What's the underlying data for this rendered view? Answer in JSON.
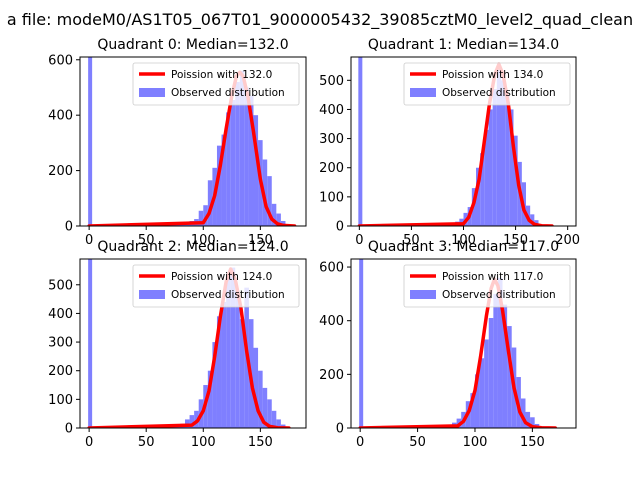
{
  "figure": {
    "suptitle": "a file: modeM0/AS1T05_067T01_9000005432_39085cztM0_level2_quad_clean",
    "colors": {
      "observed": "#7f7fff",
      "poisson": "#ff0000",
      "axes": "#000000",
      "background": "#ffffff"
    }
  },
  "chart_data": [
    {
      "type": "bar",
      "title": "Quadrant 0: Median=132.0",
      "median": 132.0,
      "xlim": [
        -8,
        190
      ],
      "ylim": [
        0,
        610
      ],
      "xticks": [
        0,
        50,
        100,
        150
      ],
      "yticks": [
        0,
        200,
        400,
        600
      ],
      "legend_position": "top-right",
      "series": [
        {
          "name": "Poission with 132.0",
          "type": "line",
          "x": [
            0,
            100,
            105,
            110,
            115,
            120,
            125,
            129,
            132,
            135,
            139,
            144,
            150,
            155,
            160,
            165,
            170,
            180
          ],
          "values": [
            0,
            12,
            45,
            110,
            220,
            350,
            470,
            540,
            555,
            540,
            470,
            340,
            170,
            70,
            25,
            8,
            2,
            0
          ]
        },
        {
          "name": "Observed distribution",
          "type": "hist",
          "bin_width": 4,
          "spike": {
            "x": 0,
            "value": 610
          },
          "bins": [
            [
              76,
              5
            ],
            [
              80,
              8
            ],
            [
              84,
              12
            ],
            [
              88,
              18
            ],
            [
              92,
              25
            ],
            [
              96,
              55
            ],
            [
              100,
              75
            ],
            [
              104,
              165
            ],
            [
              108,
              210
            ],
            [
              112,
              290
            ],
            [
              116,
              330
            ],
            [
              120,
              410
            ],
            [
              124,
              455
            ],
            [
              128,
              520
            ],
            [
              132,
              560
            ],
            [
              136,
              500
            ],
            [
              140,
              470
            ],
            [
              144,
              400
            ],
            [
              148,
              310
            ],
            [
              152,
              240
            ],
            [
              156,
              180
            ],
            [
              160,
              80
            ],
            [
              164,
              45
            ],
            [
              168,
              18
            ],
            [
              172,
              6
            ]
          ]
        }
      ]
    },
    {
      "type": "bar",
      "title": "Quadrant 1: Median=134.0",
      "median": 134.0,
      "xlim": [
        -8,
        208
      ],
      "ylim": [
        0,
        580
      ],
      "xticks": [
        0,
        50,
        100,
        150,
        200
      ],
      "yticks": [
        0,
        100,
        200,
        300,
        400,
        500
      ],
      "legend_position": "top-right",
      "series": [
        {
          "name": "Poission with 134.0",
          "type": "line",
          "x": [
            0,
            100,
            105,
            110,
            115,
            120,
            125,
            130,
            134,
            138,
            143,
            148,
            153,
            158,
            163,
            168,
            175,
            185
          ],
          "values": [
            0,
            8,
            30,
            80,
            160,
            290,
            420,
            520,
            555,
            520,
            420,
            270,
            140,
            55,
            20,
            6,
            1,
            0
          ]
        },
        {
          "name": "Observed distribution",
          "type": "hist",
          "bin_width": 4,
          "spike": {
            "x": 0,
            "value": 580
          },
          "bins": [
            [
              88,
              8
            ],
            [
              92,
              15
            ],
            [
              96,
              25
            ],
            [
              100,
              45
            ],
            [
              104,
              65
            ],
            [
              108,
              130
            ],
            [
              112,
              200
            ],
            [
              116,
              250
            ],
            [
              120,
              330
            ],
            [
              124,
              400
            ],
            [
              128,
              470
            ],
            [
              132,
              540
            ],
            [
              136,
              500
            ],
            [
              140,
              450
            ],
            [
              144,
              400
            ],
            [
              148,
              310
            ],
            [
              152,
              220
            ],
            [
              156,
              150
            ],
            [
              160,
              70
            ],
            [
              164,
              40
            ],
            [
              168,
              20
            ],
            [
              172,
              6
            ]
          ]
        }
      ]
    },
    {
      "type": "bar",
      "title": "Quadrant 2: Median=124.0",
      "median": 124.0,
      "xlim": [
        -8,
        190
      ],
      "ylim": [
        0,
        590
      ],
      "xticks": [
        0,
        50,
        100,
        150
      ],
      "yticks": [
        0,
        100,
        200,
        300,
        400,
        500
      ],
      "legend_position": "top-right",
      "series": [
        {
          "name": "Poission with 124.0",
          "type": "line",
          "x": [
            0,
            90,
            95,
            100,
            105,
            110,
            115,
            120,
            124,
            128,
            133,
            138,
            143,
            148,
            153,
            158,
            165,
            175
          ],
          "values": [
            0,
            10,
            25,
            60,
            130,
            250,
            390,
            510,
            555,
            520,
            420,
            270,
            140,
            60,
            20,
            6,
            1,
            0
          ]
        },
        {
          "name": "Observed distribution",
          "type": "hist",
          "bin_width": 4,
          "spike": {
            "x": 0,
            "value": 590
          },
          "bins": [
            [
              80,
              15
            ],
            [
              84,
              30
            ],
            [
              88,
              45
            ],
            [
              92,
              60
            ],
            [
              96,
              100
            ],
            [
              100,
              150
            ],
            [
              104,
              200
            ],
            [
              108,
              300
            ],
            [
              112,
              390
            ],
            [
              116,
              440
            ],
            [
              120,
              530
            ],
            [
              124,
              560
            ],
            [
              128,
              480
            ],
            [
              132,
              380
            ],
            [
              136,
              490
            ],
            [
              140,
              380
            ],
            [
              144,
              280
            ],
            [
              148,
              200
            ],
            [
              152,
              140
            ],
            [
              156,
              100
            ],
            [
              160,
              60
            ],
            [
              164,
              30
            ],
            [
              168,
              12
            ]
          ]
        }
      ]
    },
    {
      "type": "bar",
      "title": "Quadrant 3: Median=117.0",
      "median": 117.0,
      "xlim": [
        -8,
        188
      ],
      "ylim": [
        0,
        630
      ],
      "xticks": [
        0,
        50,
        100,
        150
      ],
      "yticks": [
        0,
        200,
        400,
        600
      ],
      "legend_position": "top-right",
      "series": [
        {
          "name": "Poission with 117.0",
          "type": "line",
          "x": [
            0,
            85,
            90,
            95,
            100,
            105,
            110,
            114,
            117,
            120,
            124,
            129,
            134,
            139,
            144,
            150,
            158,
            170
          ],
          "values": [
            0,
            8,
            25,
            65,
            140,
            270,
            420,
            520,
            555,
            530,
            440,
            290,
            150,
            60,
            20,
            5,
            1,
            0
          ]
        },
        {
          "name": "Observed distribution",
          "type": "hist",
          "bin_width": 4,
          "spike": {
            "x": 0,
            "value": 630
          },
          "bins": [
            [
              76,
              10
            ],
            [
              80,
              20
            ],
            [
              84,
              35
            ],
            [
              88,
              60
            ],
            [
              92,
              100
            ],
            [
              96,
              130
            ],
            [
              100,
              200
            ],
            [
              104,
              260
            ],
            [
              108,
              330
            ],
            [
              112,
              410
            ],
            [
              116,
              500
            ],
            [
              120,
              560
            ],
            [
              124,
              460
            ],
            [
              128,
              380
            ],
            [
              132,
              300
            ],
            [
              136,
              190
            ],
            [
              140,
              110
            ],
            [
              144,
              60
            ],
            [
              148,
              40
            ],
            [
              152,
              15
            ],
            [
              156,
              6
            ]
          ]
        }
      ]
    }
  ]
}
